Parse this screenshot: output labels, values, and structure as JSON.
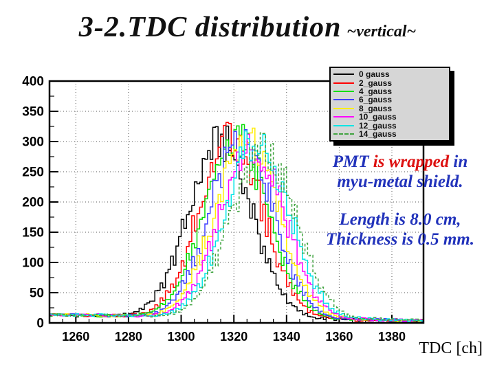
{
  "slide": {
    "title": "3-2.TDC distribution",
    "title_suffix": "~vertical~",
    "annotation": {
      "line1_part1": "PMT",
      "line1_part2": "is wrapped",
      "line1_part3": "in",
      "line2": "myu-metal shield.",
      "line3": "Length is 8.0 cm,",
      "line4": "Thickness is 0.5 mm.",
      "colors": {
        "blue": "#2233bb",
        "red": "#dd1111"
      }
    }
  },
  "chart_data": {
    "type": "step-histogram",
    "xlabel": "TDC [ch]",
    "ylabel": "",
    "xlim": [
      1250,
      1392
    ],
    "ylim": [
      0,
      400
    ],
    "x_ticks": [
      1260,
      1280,
      1300,
      1320,
      1340,
      1360,
      1380
    ],
    "y_ticks": [
      0,
      50,
      100,
      150,
      200,
      250,
      300,
      350,
      400
    ],
    "x_minor_step": 5,
    "y_minor_step": 25,
    "grid": "dotted",
    "bin_start": 1250,
    "bin_width": 2,
    "legend": {
      "position": "top-right",
      "bg": "#d6d6d6",
      "border": "#000000",
      "shadow": true
    },
    "series": [
      {
        "label": "0 gauss",
        "color": "#000000",
        "dash": null,
        "values": [
          13,
          13,
          13,
          13,
          12,
          12,
          12,
          12,
          12,
          12,
          12,
          12,
          12,
          13,
          14,
          16,
          19,
          24,
          30,
          38,
          50,
          64,
          83,
          105,
          129,
          157,
          185,
          214,
          241,
          265,
          284,
          295,
          299,
          294,
          283,
          264,
          240,
          213,
          184,
          155,
          126,
          102,
          80,
          61,
          47,
          35,
          26,
          19,
          14,
          11,
          9,
          8,
          7,
          7,
          6,
          5,
          5,
          5,
          5,
          5,
          5,
          4,
          4,
          4,
          4,
          4,
          4,
          4,
          4,
          3,
          3
        ]
      },
      {
        "label": "2_gauss",
        "color": "#ff0000",
        "dash": null,
        "values": [
          13,
          13,
          13,
          13,
          13,
          13,
          12,
          12,
          12,
          12,
          12,
          12,
          12,
          12,
          12,
          13,
          14,
          16,
          19,
          24,
          30,
          38,
          50,
          64,
          83,
          105,
          129,
          160,
          189,
          218,
          246,
          270,
          290,
          301,
          305,
          300,
          289,
          269,
          245,
          217,
          188,
          158,
          126,
          102,
          80,
          61,
          47,
          35,
          26,
          19,
          14,
          11,
          9,
          8,
          7,
          7,
          6,
          5,
          5,
          5,
          5,
          5,
          5,
          4,
          4,
          4,
          4,
          4,
          4,
          4,
          4
        ]
      },
      {
        "label": "4_gauss",
        "color": "#00dd00",
        "dash": null,
        "values": [
          13,
          13,
          13,
          13,
          13,
          13,
          13,
          12,
          12,
          12,
          12,
          12,
          12,
          12,
          12,
          12,
          13,
          14,
          16,
          19,
          24,
          30,
          38,
          50,
          64,
          83,
          105,
          129,
          162,
          191,
          222,
          249,
          274,
          294,
          305,
          309,
          304,
          293,
          273,
          248,
          220,
          190,
          160,
          126,
          102,
          80,
          61,
          47,
          35,
          26,
          19,
          14,
          11,
          9,
          8,
          7,
          7,
          6,
          5,
          5,
          5,
          5,
          5,
          5,
          4,
          4,
          4,
          4,
          4,
          4,
          4
        ]
      },
      {
        "label": "6_gauss",
        "color": "#3f3fff",
        "dash": null,
        "values": [
          13,
          13,
          13,
          13,
          13,
          13,
          13,
          13,
          12,
          12,
          12,
          12,
          12,
          12,
          12,
          12,
          12,
          13,
          14,
          16,
          19,
          24,
          30,
          38,
          50,
          64,
          83,
          105,
          129,
          159,
          187,
          216,
          243,
          268,
          287,
          298,
          302,
          297,
          286,
          267,
          242,
          215,
          186,
          157,
          126,
          102,
          80,
          61,
          47,
          35,
          26,
          19,
          14,
          11,
          9,
          8,
          7,
          7,
          6,
          5,
          5,
          5,
          5,
          5,
          5,
          4,
          4,
          4,
          4,
          4,
          4
        ]
      },
      {
        "label": "8_gauss",
        "color": "#ffee00",
        "dash": null,
        "values": [
          13,
          13,
          13,
          13,
          13,
          13,
          13,
          13,
          13,
          12,
          12,
          12,
          12,
          12,
          12,
          12,
          12,
          12,
          13,
          14,
          16,
          19,
          24,
          30,
          38,
          50,
          64,
          83,
          105,
          129,
          157,
          185,
          214,
          241,
          265,
          284,
          295,
          299,
          294,
          283,
          264,
          240,
          213,
          184,
          155,
          126,
          102,
          80,
          61,
          47,
          35,
          26,
          19,
          14,
          11,
          9,
          8,
          7,
          7,
          6,
          5,
          5,
          5,
          5,
          5,
          5,
          4,
          4,
          4,
          4,
          4
        ]
      },
      {
        "label": "10_gauss",
        "color": "#ff00ff",
        "dash": null,
        "values": [
          13,
          13,
          13,
          13,
          13,
          13,
          13,
          13,
          13,
          13,
          12,
          12,
          12,
          12,
          12,
          12,
          12,
          12,
          12,
          13,
          14,
          16,
          19,
          24,
          30,
          38,
          50,
          64,
          83,
          105,
          129,
          155,
          183,
          212,
          239,
          262,
          281,
          292,
          296,
          291,
          280,
          261,
          238,
          211,
          182,
          153,
          126,
          102,
          80,
          61,
          47,
          35,
          26,
          19,
          14,
          11,
          9,
          8,
          7,
          7,
          6,
          5,
          5,
          5,
          5,
          5,
          5,
          4,
          4,
          4,
          4
        ]
      },
      {
        "label": "12_gauss",
        "color": "#00e5e5",
        "dash": null,
        "values": [
          13,
          13,
          13,
          13,
          13,
          13,
          13,
          13,
          13,
          13,
          13,
          12,
          12,
          12,
          12,
          12,
          12,
          12,
          12,
          12,
          13,
          14,
          16,
          19,
          24,
          30,
          38,
          50,
          64,
          83,
          105,
          129,
          159,
          187,
          216,
          243,
          268,
          287,
          298,
          302,
          297,
          286,
          267,
          242,
          215,
          186,
          157,
          126,
          102,
          80,
          61,
          47,
          35,
          26,
          19,
          14,
          11,
          9,
          8,
          7,
          7,
          6,
          5,
          5,
          5,
          5,
          5,
          5,
          4,
          4,
          4
        ]
      },
      {
        "label": "14_gauss",
        "color": "#3fa33f",
        "dash": "4 3",
        "values": [
          13,
          13,
          13,
          13,
          13,
          13,
          13,
          13,
          13,
          13,
          13,
          13,
          12,
          12,
          12,
          12,
          12,
          12,
          12,
          12,
          12,
          13,
          14,
          16,
          19,
          24,
          30,
          38,
          50,
          64,
          83,
          105,
          129,
          152,
          179,
          207,
          233,
          256,
          274,
          285,
          289,
          284,
          273,
          255,
          232,
          206,
          178,
          150,
          126,
          102,
          80,
          61,
          47,
          35,
          26,
          19,
          14,
          11,
          9,
          8,
          7,
          7,
          6,
          5,
          5,
          5,
          5,
          5,
          5,
          4,
          4
        ]
      }
    ]
  }
}
